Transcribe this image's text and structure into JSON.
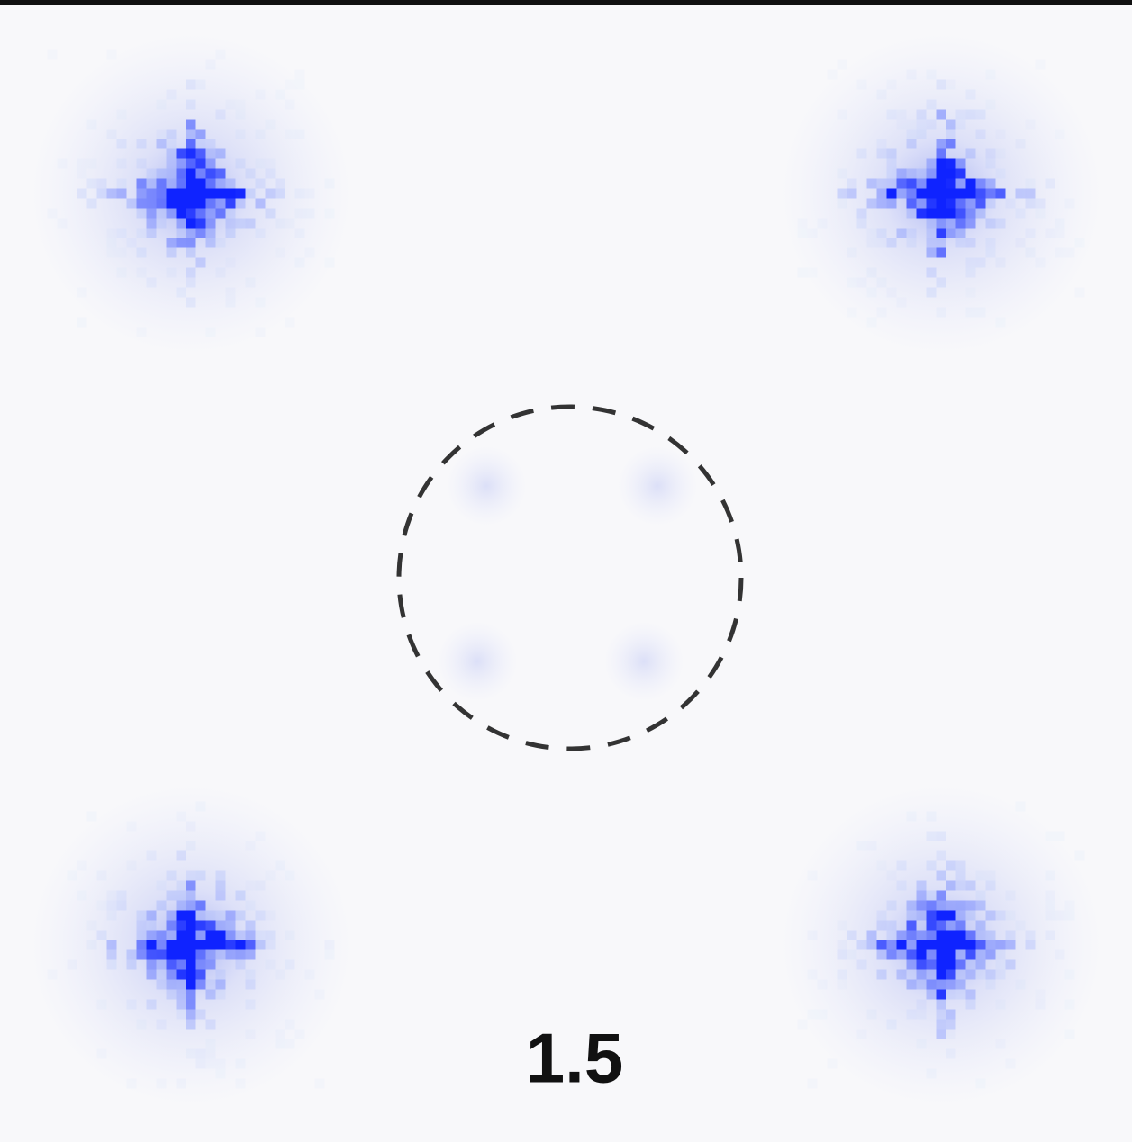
{
  "label": "1.5"
}
